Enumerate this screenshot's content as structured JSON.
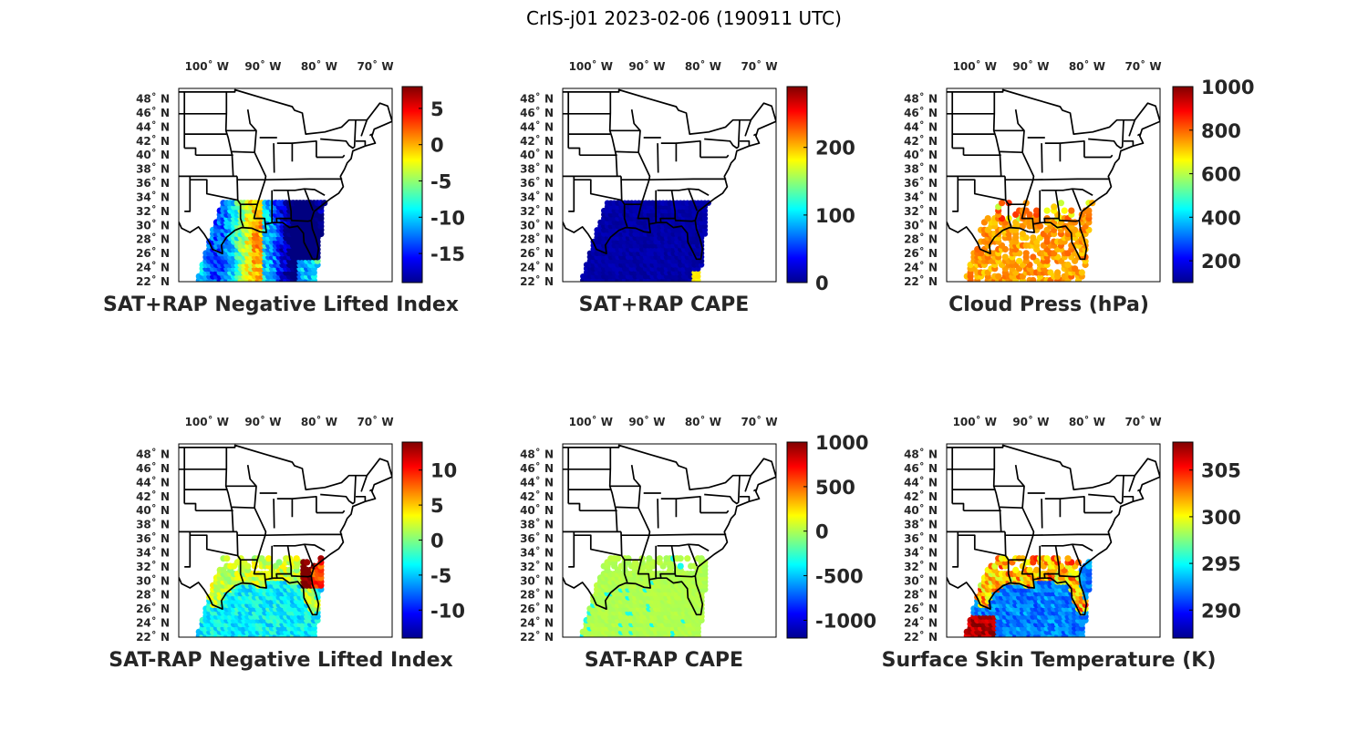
{
  "figure": {
    "title": "CrIS-j01 2023-02-06 (190911 UTC)"
  },
  "axes": {
    "lon_ticks": [
      "100˚ W",
      "90˚ W",
      "80˚ W",
      "70˚ W"
    ],
    "lat_ticks": [
      "48˚ N",
      "46˚ N",
      "44˚ N",
      "42˚ N",
      "40˚ N",
      "38˚ N",
      "36˚ N",
      "34˚ N",
      "32˚ N",
      "30˚ N",
      "28˚ N",
      "26˚ N",
      "24˚ N",
      "22˚ N"
    ],
    "lon_values": [
      -100,
      -90,
      -80,
      -70
    ],
    "lat_values": [
      48,
      46,
      44,
      42,
      40,
      38,
      36,
      34,
      32,
      30,
      28,
      26,
      24,
      22
    ],
    "lon_range": [
      -105,
      -67
    ],
    "lat_range": [
      22,
      49.5
    ]
  },
  "colormap": "jet",
  "panels": [
    {
      "title": "SAT+RAP Negative Lifted Index",
      "colorbar": {
        "range": [
          -19,
          8
        ],
        "ticks": [
          5,
          0,
          -5,
          -10,
          -15
        ],
        "tick_labels": [
          "5",
          "0",
          "-5",
          "-10",
          "-15"
        ]
      },
      "field": "li_sum"
    },
    {
      "title": "SAT+RAP CAPE",
      "colorbar": {
        "range": [
          0,
          290
        ],
        "ticks": [
          200,
          100,
          0
        ],
        "tick_labels": [
          "200",
          "100",
          "0"
        ]
      },
      "field": "cape_sum"
    },
    {
      "title": "Cloud Press (hPa)",
      "colorbar": {
        "range": [
          100,
          1000
        ],
        "ticks": [
          1000,
          800,
          600,
          400,
          200
        ],
        "tick_labels": [
          "1000",
          "800",
          "600",
          "400",
          "200"
        ]
      },
      "field": "cloud"
    },
    {
      "title": "SAT-RAP Negative Lifted Index",
      "colorbar": {
        "range": [
          -14,
          14
        ],
        "ticks": [
          10,
          5,
          0,
          -5,
          -10
        ],
        "tick_labels": [
          "10",
          "5",
          "0",
          "-5",
          "-10"
        ]
      },
      "field": "li_diff"
    },
    {
      "title": "SAT-RAP CAPE",
      "colorbar": {
        "range": [
          -1200,
          1000
        ],
        "ticks": [
          1000,
          500,
          0,
          -500,
          -1000
        ],
        "tick_labels": [
          "1000",
          "500",
          "0",
          "-500",
          "-1000"
        ]
      },
      "field": "cape_diff"
    },
    {
      "title": "Surface Skin Temperature (K)",
      "colorbar": {
        "range": [
          287,
          308
        ],
        "ticks": [
          305,
          300,
          295,
          290
        ],
        "tick_labels": [
          "305",
          "300",
          "295",
          "290"
        ]
      },
      "field": "skin"
    }
  ]
}
